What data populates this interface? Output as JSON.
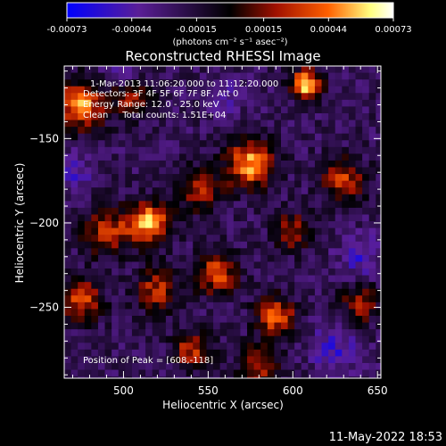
{
  "chart_data": {
    "type": "heatmap",
    "title": "Reconstructed RHESSI Image",
    "xlabel": "Heliocentric X (arcsec)",
    "ylabel": "Heliocentric Y (arcsec)",
    "xlim": [
      465,
      652
    ],
    "ylim": [
      -292,
      -107
    ],
    "x_ticks": [
      500,
      550,
      600,
      650
    ],
    "y_ticks": [
      -150,
      -200,
      -250
    ],
    "colorbar": {
      "ticks": [
        "-0.00073",
        "-0.00044",
        "-0.00015",
        "0.00015",
        "0.00044",
        "0.00073"
      ],
      "range": [
        -0.00073,
        0.00073
      ],
      "unit_label": "(photons cm⁻² s⁻¹ asec⁻²)",
      "colors": [
        "#0000ff",
        "#5a1e96",
        "#000000",
        "#a01000",
        "#ff6000",
        "#ffff80",
        "#ffffff"
      ]
    },
    "annotations": [
      "1-Mar-2013 11:06:20.000 to 11:12:20.000",
      "Detectors: 3F 4F 5F 6F 7F 8F, Att 0",
      "Energy Range: 12.0 - 25.0 keV",
      "Clean     Total counts: 1.51E+04"
    ],
    "peak_label": "Position of Peak = [608,-118]",
    "peak": [
      608,
      -118
    ],
    "hotspots": [
      {
        "x": 608,
        "y": -118,
        "amp": 1.0,
        "r": 6
      },
      {
        "x": 475,
        "y": -130,
        "amp": 0.8,
        "r": 10
      },
      {
        "x": 505,
        "y": -125,
        "amp": 0.55,
        "r": 8
      },
      {
        "x": 575,
        "y": -165,
        "amp": 0.85,
        "r": 10
      },
      {
        "x": 545,
        "y": -180,
        "amp": 0.55,
        "r": 9
      },
      {
        "x": 515,
        "y": -200,
        "amp": 0.85,
        "r": 9
      },
      {
        "x": 490,
        "y": -205,
        "amp": 0.55,
        "r": 10
      },
      {
        "x": 630,
        "y": -175,
        "amp": 0.6,
        "r": 9
      },
      {
        "x": 600,
        "y": -205,
        "amp": 0.5,
        "r": 8
      },
      {
        "x": 555,
        "y": -230,
        "amp": 0.65,
        "r": 9
      },
      {
        "x": 520,
        "y": -240,
        "amp": 0.55,
        "r": 9
      },
      {
        "x": 475,
        "y": -245,
        "amp": 0.6,
        "r": 9
      },
      {
        "x": 590,
        "y": -255,
        "amp": 0.7,
        "r": 8
      },
      {
        "x": 640,
        "y": -248,
        "amp": 0.5,
        "r": 8
      },
      {
        "x": 540,
        "y": -275,
        "amp": 0.55,
        "r": 8
      },
      {
        "x": 580,
        "y": -285,
        "amp": 0.5,
        "r": 9
      }
    ],
    "coldspots": [
      {
        "x": 500,
        "y": -110,
        "amp": 0.6,
        "r": 8
      },
      {
        "x": 560,
        "y": -125,
        "amp": 0.5,
        "r": 7
      },
      {
        "x": 640,
        "y": -220,
        "amp": 0.6,
        "r": 9
      },
      {
        "x": 625,
        "y": -275,
        "amp": 0.6,
        "r": 10
      },
      {
        "x": 470,
        "y": -170,
        "amp": 0.5,
        "r": 8
      }
    ]
  },
  "footer": {
    "timestamp": "11-May-2022 18:53"
  }
}
